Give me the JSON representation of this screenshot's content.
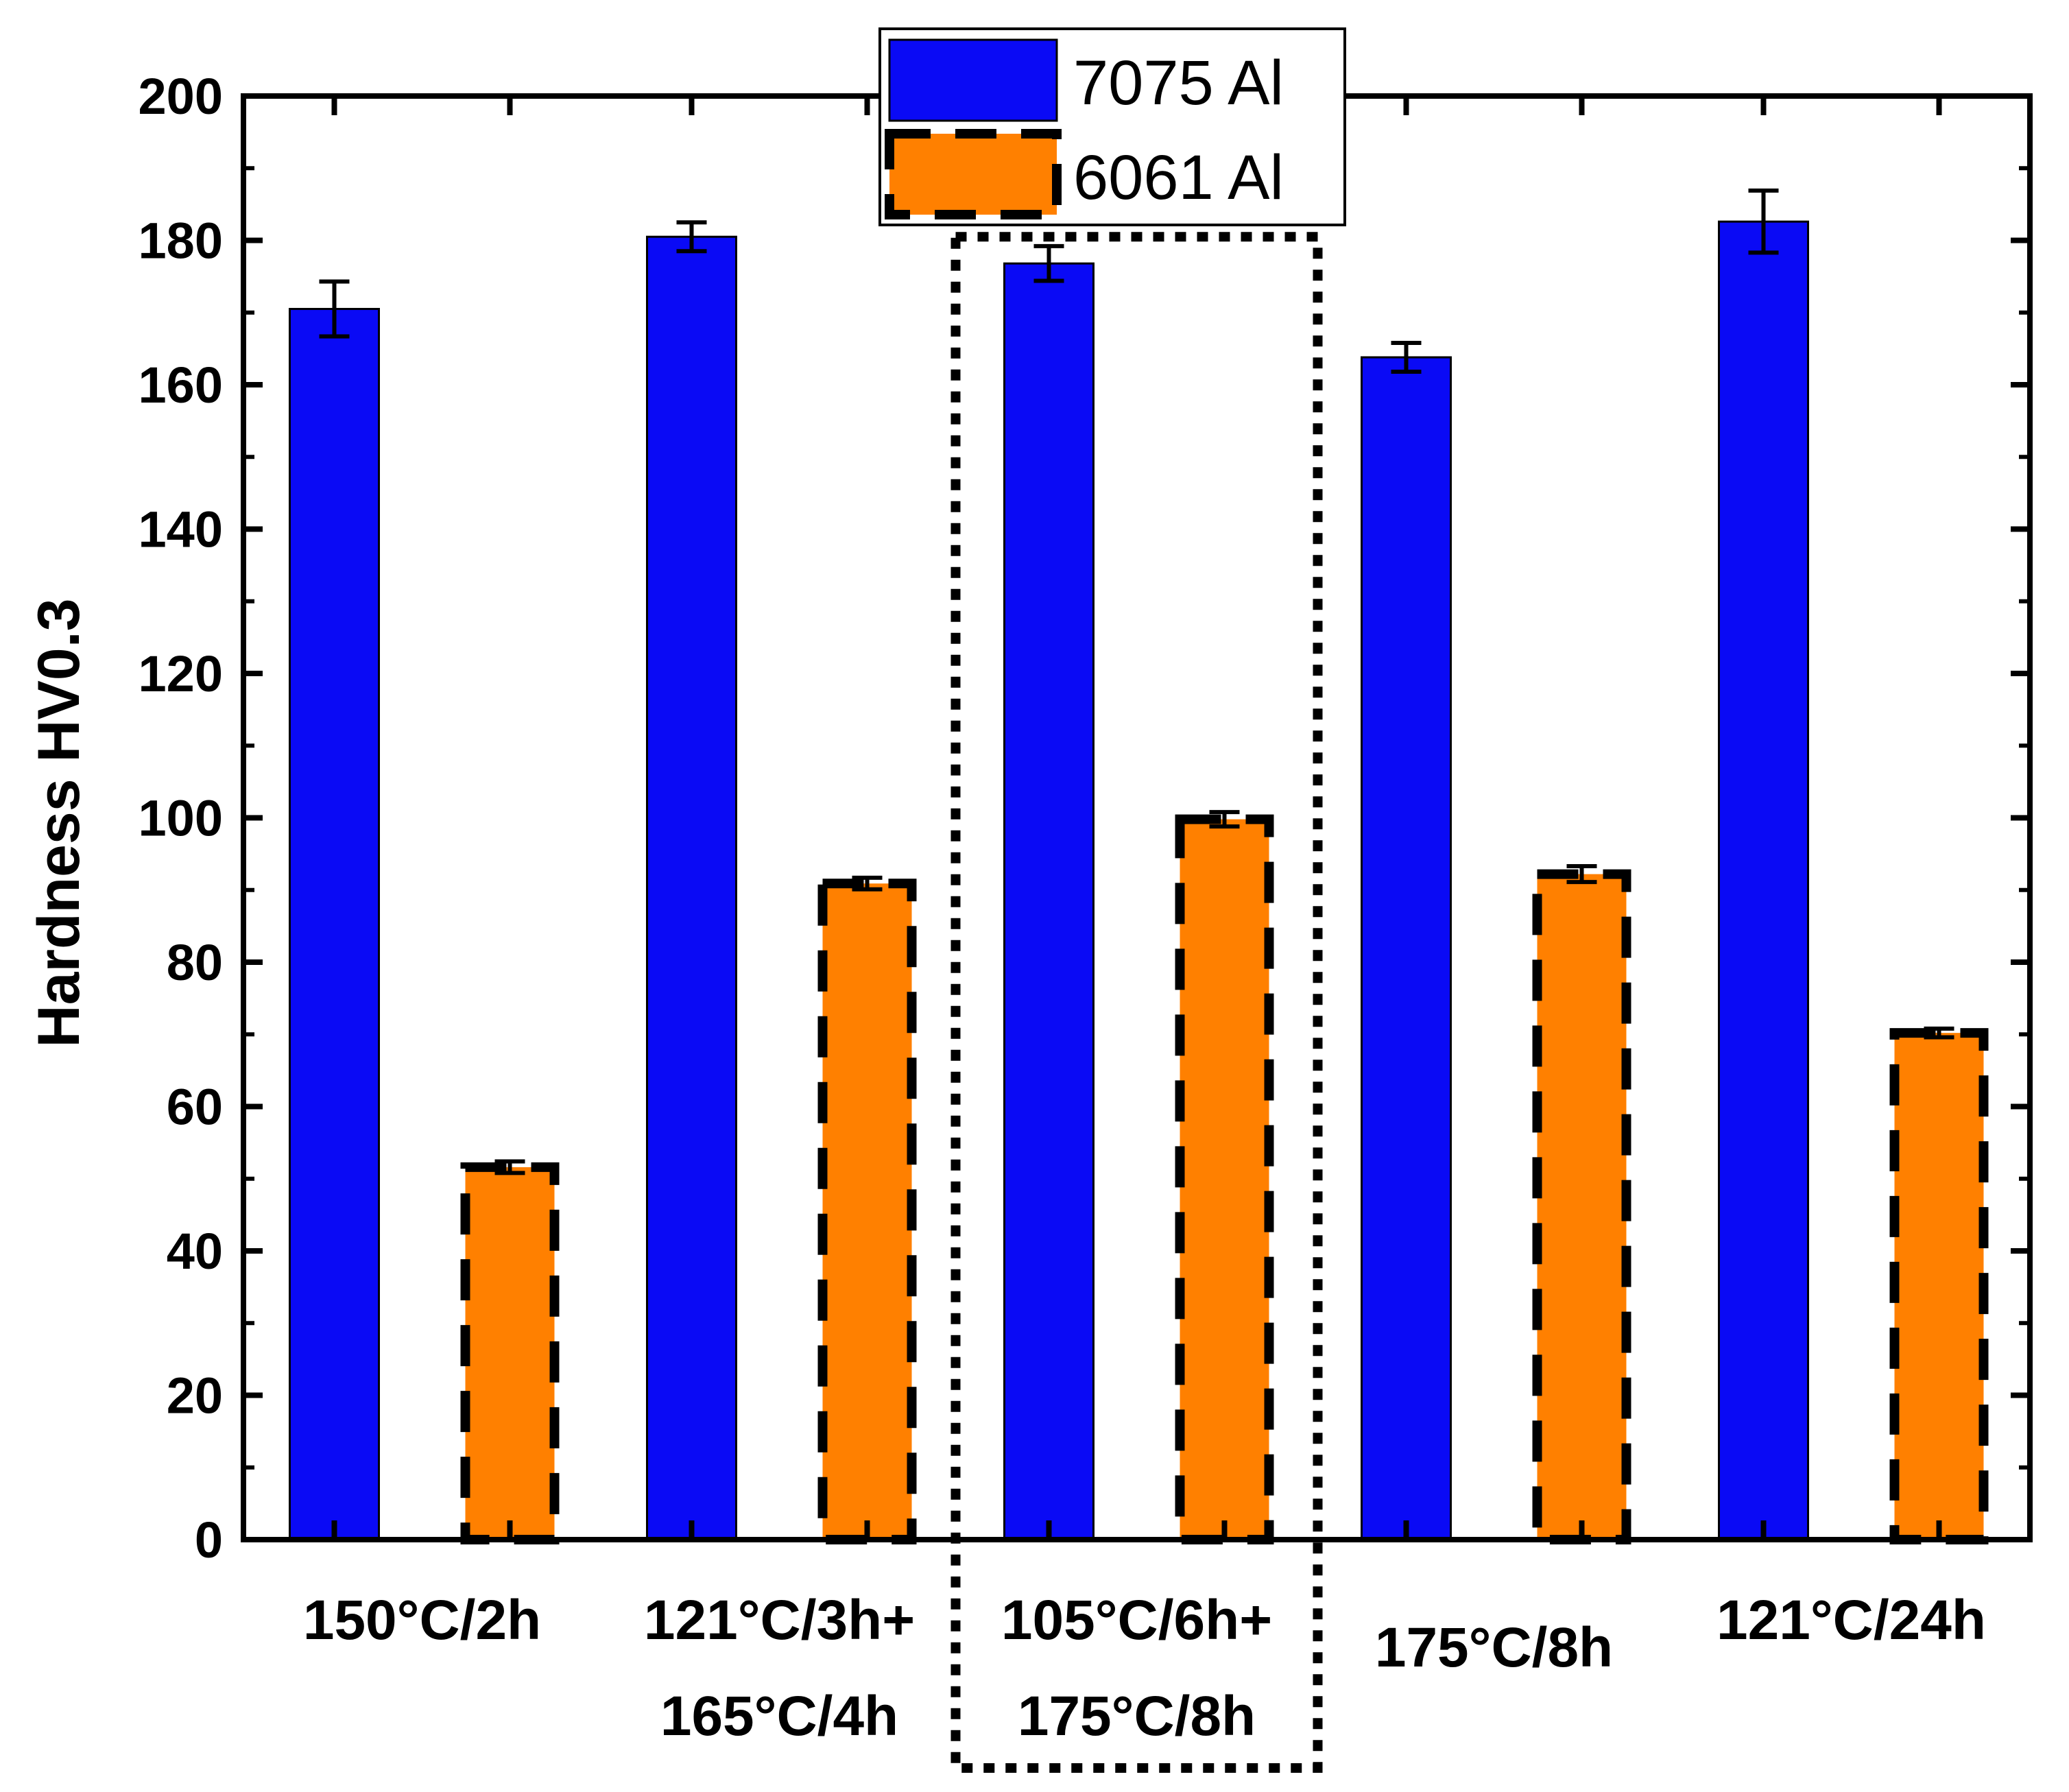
{
  "chart_data": {
    "type": "bar",
    "title": "",
    "xlabel": "",
    "ylabel": "Hardness HV0.3",
    "ylim": [
      0,
      200
    ],
    "yticks": [
      0,
      20,
      40,
      60,
      80,
      100,
      120,
      140,
      160,
      180,
      200
    ],
    "grid": false,
    "legend_position": "top-center",
    "categories": [
      [
        "150°C/2h"
      ],
      [
        "121°C/3h+",
        "165°C/4h"
      ],
      [
        "105°C/6h+",
        "175°C/8h"
      ],
      [
        "175°C/8h"
      ],
      [
        "121°C/24h"
      ]
    ],
    "highlighted_category_index": 2,
    "series": [
      {
        "name": "7075 Al",
        "color": "#0a0af5",
        "style": "solid",
        "values": [
          170.5,
          180.5,
          176.8,
          163.8,
          182.6
        ],
        "errors": [
          3.8,
          2.0,
          2.4,
          2.0,
          4.3
        ]
      },
      {
        "name": "6061 Al",
        "color": "#ff8000",
        "style": "dashed",
        "values": [
          51.6,
          90.9,
          99.8,
          92.2,
          70.2
        ],
        "errors": [
          0.8,
          0.8,
          1.0,
          1.1,
          0.6
        ]
      }
    ]
  }
}
